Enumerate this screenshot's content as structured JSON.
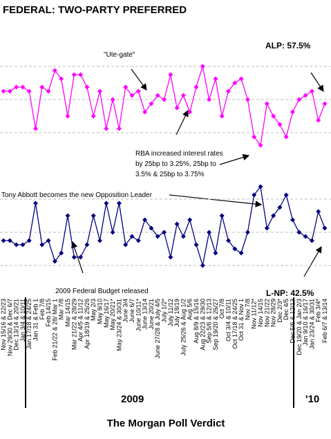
{
  "chart_data": {
    "type": "line",
    "title": "FEDERAL: TWO-PARTY PREFERRED",
    "footer": "The Morgan Poll Verdict",
    "year_labels": [
      "2009",
      "'10"
    ],
    "annotations": {
      "ute_gate": "\"Ute-gate\"",
      "rba": [
        "RBA increased interest rates",
        "by 25bp to 3.25%, 25bp to",
        "3.5% & 25bp to 3.75%"
      ],
      "abbott": "Tony Abbott becomes the new  Opposition Leader",
      "budget": "2009 Federal Budget released",
      "alp_end": "ALP: 57.5%",
      "lnp_end": "L-NP: 42.5%"
    },
    "categories": [
      "Nov 15/16 & 22/23",
      "Nov 29/30 & Dec 6/7",
      "Dec 13/14 & 20/21",
      "Jan 3/4 & 10/11",
      "Jan 17/18 & 24/25",
      "Jan 31 & Feb 1",
      "Feb 7/8",
      "Feb 14/15",
      "Feb 21/22 & 28/ Mar 1",
      "Mar 7/8",
      "Mar 14/15",
      "Mar 21/22 & 28/29",
      "Apr 4/5 & 11/12",
      "Apr 18/19 & 25/26",
      "May 2/3",
      "May 9/10",
      "May 16/17",
      "May 20/21*",
      "May 23/24 & 30/31",
      "June 3/4",
      "June 6/7",
      "June 10/11*",
      "June 13/14",
      "June 20/21",
      "June 27/28 & July 4/5",
      "July 1/2*",
      "July 11/12",
      "July 18/19",
      "July 25/26 & Aug 1/2",
      "Aug 5/6",
      "Aug 8/9 & 15/16",
      "Aug 22/23 & 29/30",
      "Sep 5/6 & 12/13",
      "Sep 19/20 & 26/27",
      "Oct 7/8",
      "Oct 3/4 & 10/11",
      "Oct 17/18 & 24/25",
      "Oct 31 & Nov 1",
      "Nov 7/8",
      "Nov 11/12*",
      "Nov 14/15",
      "Nov 21/22",
      "Nov 28/29",
      "Dec 2/3*",
      "Dec 4/5",
      "Dec 5/6 & 12/13",
      "Dec 19/20 & Jan 2/3",
      "Jan 9/10 & 16/17",
      "Jan 23/24 & 30/31",
      "Feb 3/4*",
      "Feb 6/7 & 13/14"
    ],
    "series": [
      {
        "name": "ALP",
        "color": "#ff00ff",
        "values": [
          59,
          59,
          59.5,
          59.5,
          59,
          54.5,
          59.5,
          59,
          61.5,
          60.5,
          56,
          61,
          61,
          59.5,
          56,
          59,
          54.5,
          58,
          54.5,
          59.5,
          58.5,
          59,
          56.5,
          57.5,
          58.5,
          58,
          61,
          57,
          58.5,
          56.5,
          59.5,
          62,
          58,
          60.5,
          56,
          59,
          60,
          60.5,
          58,
          53.5,
          52.5,
          57.5,
          56,
          55,
          53.5,
          56.5,
          58,
          58.5,
          59,
          55.5,
          57.5
        ]
      },
      {
        "name": "L-NP",
        "color": "#000080",
        "values": [
          41,
          41,
          40.5,
          40.5,
          41,
          45.5,
          40.5,
          41,
          38.5,
          39.5,
          44,
          39,
          39,
          40.5,
          44,
          41,
          45.5,
          42,
          45.5,
          40.5,
          41.5,
          41,
          43.5,
          42.5,
          41.5,
          42,
          39,
          43,
          41.5,
          43.5,
          40.5,
          38,
          42,
          39.5,
          44,
          41,
          40,
          39.5,
          42,
          46.5,
          47.5,
          42.5,
          44,
          45,
          46.5,
          43.5,
          42,
          41.5,
          41,
          44.5,
          42.5
        ]
      }
    ],
    "ylim": [
      35,
      67.5
    ],
    "yticks": [
      38,
      42,
      46,
      54,
      58,
      62
    ],
    "grid": true
  }
}
